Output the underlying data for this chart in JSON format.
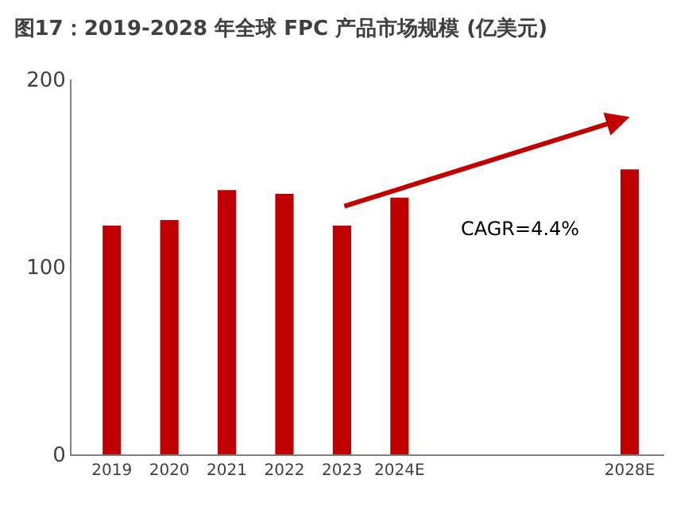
{
  "chart_data": {
    "type": "bar",
    "title": "图17：2019-2028 年全球 FPC 产品市场规模 (亿美元)",
    "categories": [
      "2019",
      "2020",
      "2021",
      "2022",
      "2023",
      "2024E",
      null,
      null,
      null,
      "2028E"
    ],
    "series": [
      {
        "color": "#c00000",
        "values": [
          122,
          125,
          141,
          139,
          122,
          137,
          null,
          null,
          null,
          152
        ]
      }
    ],
    "ylim": [
      0,
      200
    ],
    "yticks": [
      0,
      100,
      200
    ],
    "annotations": [
      "CAGR=4.4%"
    ]
  }
}
